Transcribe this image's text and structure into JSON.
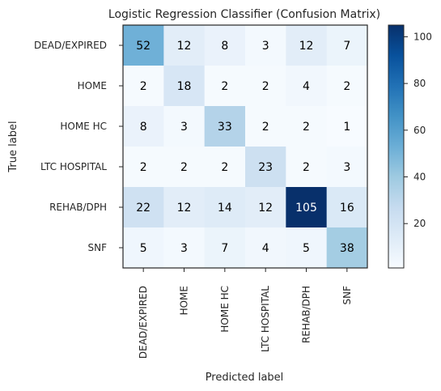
{
  "chart_data": {
    "type": "heatmap",
    "title": "Logistic Regression Classifier (Confusion Matrix)",
    "xlabel": "Predicted label",
    "ylabel": "True label",
    "x_categories": [
      "DEAD/EXPIRED",
      "HOME",
      "HOME HC",
      "LTC HOSPITAL",
      "REHAB/DPH",
      "SNF"
    ],
    "y_categories": [
      "DEAD/EXPIRED",
      "HOME",
      "HOME HC",
      "LTC HOSPITAL",
      "REHAB/DPH",
      "SNF"
    ],
    "values": [
      [
        52,
        12,
        8,
        3,
        12,
        7
      ],
      [
        2,
        18,
        2,
        2,
        4,
        2
      ],
      [
        8,
        3,
        33,
        2,
        2,
        1
      ],
      [
        2,
        2,
        2,
        23,
        2,
        3
      ],
      [
        22,
        12,
        14,
        12,
        105,
        16
      ],
      [
        5,
        3,
        7,
        4,
        5,
        38
      ]
    ],
    "colormap": "Blues",
    "colorbar": {
      "range": [
        1,
        105
      ],
      "ticks": [
        20,
        40,
        60,
        80,
        100
      ]
    }
  }
}
